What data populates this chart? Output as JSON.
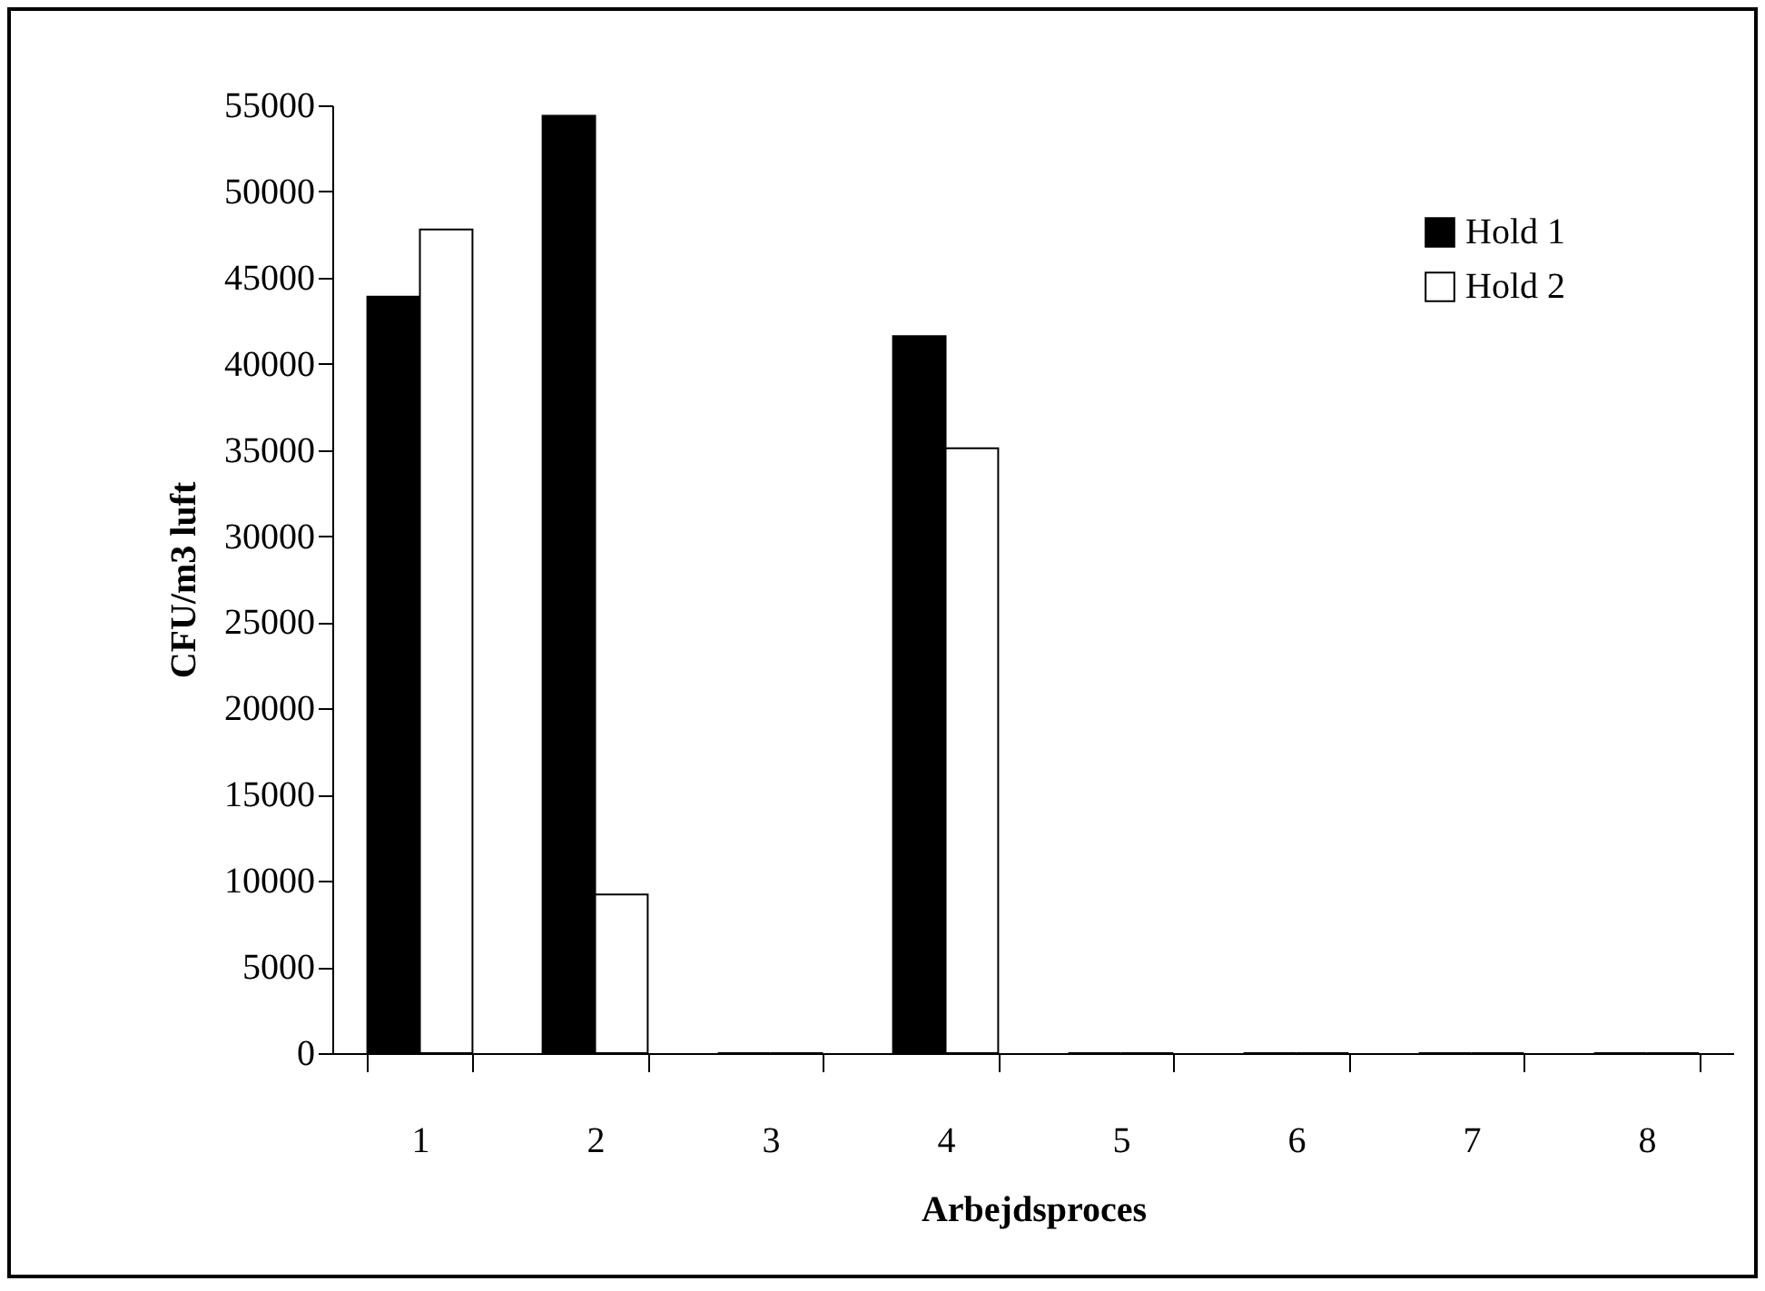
{
  "chart_data": {
    "type": "bar",
    "xlabel": "Arbejdsproces",
    "ylabel": "CFU/m3 luft",
    "categories": [
      "1",
      "2",
      "3",
      "4",
      "5",
      "6",
      "7",
      "8"
    ],
    "series": [
      {
        "name": "Hold 1",
        "color": "#000000",
        "values": [
          43900,
          54400,
          0,
          41600,
          0,
          0,
          0,
          0
        ]
      },
      {
        "name": "Hold 2",
        "color": "#ffffff",
        "values": [
          47800,
          9200,
          0,
          35100,
          0,
          0,
          0,
          0
        ]
      }
    ],
    "ylim": [
      0,
      55000
    ],
    "yticks": [
      0,
      5000,
      10000,
      15000,
      20000,
      25000,
      30000,
      35000,
      40000,
      45000,
      50000,
      55000
    ],
    "grid": false,
    "legend": "top right"
  }
}
